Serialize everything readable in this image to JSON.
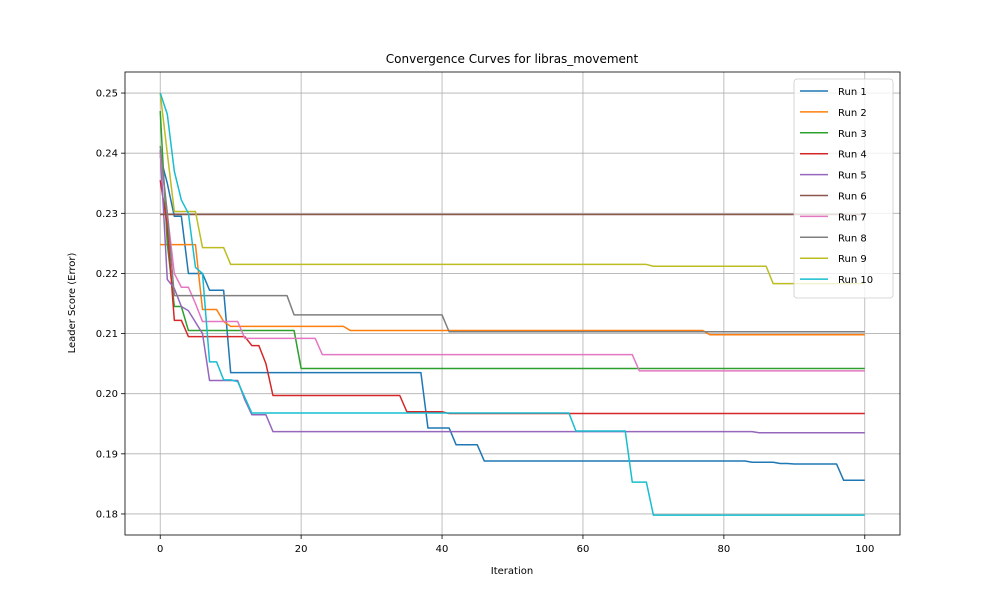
{
  "chart_data": {
    "type": "line",
    "title": "Convergence Curves for libras_movement",
    "xlabel": "Iteration",
    "ylabel": "Leader Score (Error)",
    "xlim": [
      -5,
      105
    ],
    "ylim": [
      0.1765,
      0.2535
    ],
    "xticks": [
      0,
      20,
      40,
      60,
      80,
      100
    ],
    "yticks": [
      0.18,
      0.19,
      0.2,
      0.21,
      0.22,
      0.23,
      0.24,
      0.25
    ],
    "ytick_labels": [
      "0.18",
      "0.19",
      "0.20",
      "0.21",
      "0.22",
      "0.23",
      "0.24",
      "0.25"
    ],
    "grid": true,
    "legend_position": "top-right",
    "series": [
      {
        "name": "Run 1",
        "color": "#1f77b4",
        "points": [
          [
            0,
            0.2395
          ],
          [
            1,
            0.235
          ],
          [
            2,
            0.2295
          ],
          [
            3,
            0.2295
          ],
          [
            4,
            0.22
          ],
          [
            5,
            0.22
          ],
          [
            6,
            0.22
          ],
          [
            7,
            0.2172
          ],
          [
            8,
            0.2172
          ],
          [
            9,
            0.2172
          ],
          [
            10,
            0.2035
          ],
          [
            37,
            0.2035
          ],
          [
            38,
            0.1943
          ],
          [
            41,
            0.1943
          ],
          [
            42,
            0.1915
          ],
          [
            45,
            0.1915
          ],
          [
            46,
            0.1888
          ],
          [
            83,
            0.1888
          ],
          [
            84,
            0.1886
          ],
          [
            87,
            0.1886
          ],
          [
            88,
            0.1884
          ],
          [
            89,
            0.1884
          ],
          [
            90,
            0.1883
          ],
          [
            96,
            0.1883
          ],
          [
            97,
            0.1856
          ],
          [
            100,
            0.1856
          ]
        ]
      },
      {
        "name": "Run 2",
        "color": "#ff7f0e",
        "points": [
          [
            0,
            0.2248
          ],
          [
            5,
            0.2248
          ],
          [
            6,
            0.214
          ],
          [
            8,
            0.214
          ],
          [
            9,
            0.212
          ],
          [
            10,
            0.2112
          ],
          [
            26,
            0.2112
          ],
          [
            27,
            0.2105
          ],
          [
            77,
            0.2105
          ],
          [
            78,
            0.2098
          ],
          [
            100,
            0.2098
          ]
        ]
      },
      {
        "name": "Run 3",
        "color": "#2ca02c",
        "points": [
          [
            0,
            0.247
          ],
          [
            1,
            0.225
          ],
          [
            2,
            0.2145
          ],
          [
            3,
            0.2145
          ],
          [
            4,
            0.2105
          ],
          [
            19,
            0.2105
          ],
          [
            20,
            0.2042
          ],
          [
            100,
            0.2042
          ]
        ]
      },
      {
        "name": "Run 4",
        "color": "#d62728",
        "points": [
          [
            0,
            0.2355
          ],
          [
            1,
            0.228
          ],
          [
            2,
            0.2122
          ],
          [
            3,
            0.2122
          ],
          [
            4,
            0.2095
          ],
          [
            12,
            0.2095
          ],
          [
            13,
            0.208
          ],
          [
            14,
            0.208
          ],
          [
            15,
            0.205
          ],
          [
            16,
            0.1997
          ],
          [
            34,
            0.1997
          ],
          [
            35,
            0.197
          ],
          [
            40,
            0.197
          ],
          [
            41,
            0.1967
          ],
          [
            100,
            0.1967
          ]
        ]
      },
      {
        "name": "Run 5",
        "color": "#9467bd",
        "points": [
          [
            0,
            0.2405
          ],
          [
            1,
            0.219
          ],
          [
            2,
            0.2175
          ],
          [
            3,
            0.2145
          ],
          [
            4,
            0.2138
          ],
          [
            6,
            0.21
          ],
          [
            7,
            0.2022
          ],
          [
            11,
            0.2022
          ],
          [
            12,
            0.199
          ],
          [
            13,
            0.1965
          ],
          [
            15,
            0.1965
          ],
          [
            16,
            0.1937
          ],
          [
            84,
            0.1937
          ],
          [
            85,
            0.1935
          ],
          [
            100,
            0.1935
          ]
        ]
      },
      {
        "name": "Run 6",
        "color": "#8c564b",
        "points": [
          [
            0,
            0.2298
          ],
          [
            100,
            0.2298
          ]
        ]
      },
      {
        "name": "Run 7",
        "color": "#e377c2",
        "points": [
          [
            0,
            0.24
          ],
          [
            1,
            0.23
          ],
          [
            2,
            0.22
          ],
          [
            3,
            0.2177
          ],
          [
            4,
            0.2177
          ],
          [
            5,
            0.215
          ],
          [
            6,
            0.212
          ],
          [
            11,
            0.212
          ],
          [
            12,
            0.2092
          ],
          [
            22,
            0.2092
          ],
          [
            23,
            0.2065
          ],
          [
            67,
            0.2065
          ],
          [
            68,
            0.2038
          ],
          [
            100,
            0.2038
          ]
        ]
      },
      {
        "name": "Run 8",
        "color": "#7f7f7f",
        "points": [
          [
            0,
            0.2412
          ],
          [
            1,
            0.23
          ],
          [
            2,
            0.2163
          ],
          [
            18,
            0.2163
          ],
          [
            19,
            0.2131
          ],
          [
            40,
            0.2131
          ],
          [
            41,
            0.2103
          ],
          [
            100,
            0.2103
          ]
        ]
      },
      {
        "name": "Run 9",
        "color": "#bcbd22",
        "points": [
          [
            0,
            0.25
          ],
          [
            1,
            0.24
          ],
          [
            2,
            0.2303
          ],
          [
            5,
            0.2303
          ],
          [
            6,
            0.2243
          ],
          [
            9,
            0.2243
          ],
          [
            10,
            0.2215
          ],
          [
            69,
            0.2215
          ],
          [
            70,
            0.2212
          ],
          [
            86,
            0.2212
          ],
          [
            87,
            0.2183
          ],
          [
            100,
            0.2183
          ]
        ]
      },
      {
        "name": "Run 10",
        "color": "#17becf",
        "points": [
          [
            0,
            0.25
          ],
          [
            1,
            0.2465
          ],
          [
            2,
            0.237
          ],
          [
            3,
            0.2322
          ],
          [
            4,
            0.23
          ],
          [
            5,
            0.221
          ],
          [
            6,
            0.22
          ],
          [
            7,
            0.2053
          ],
          [
            8,
            0.2053
          ],
          [
            9,
            0.2023
          ],
          [
            10,
            0.2023
          ],
          [
            11,
            0.202
          ],
          [
            13,
            0.1968
          ],
          [
            58,
            0.1968
          ],
          [
            59,
            0.1938
          ],
          [
            66,
            0.1938
          ],
          [
            67,
            0.1853
          ],
          [
            69,
            0.1853
          ],
          [
            70,
            0.1798
          ],
          [
            100,
            0.1798
          ]
        ]
      }
    ]
  }
}
